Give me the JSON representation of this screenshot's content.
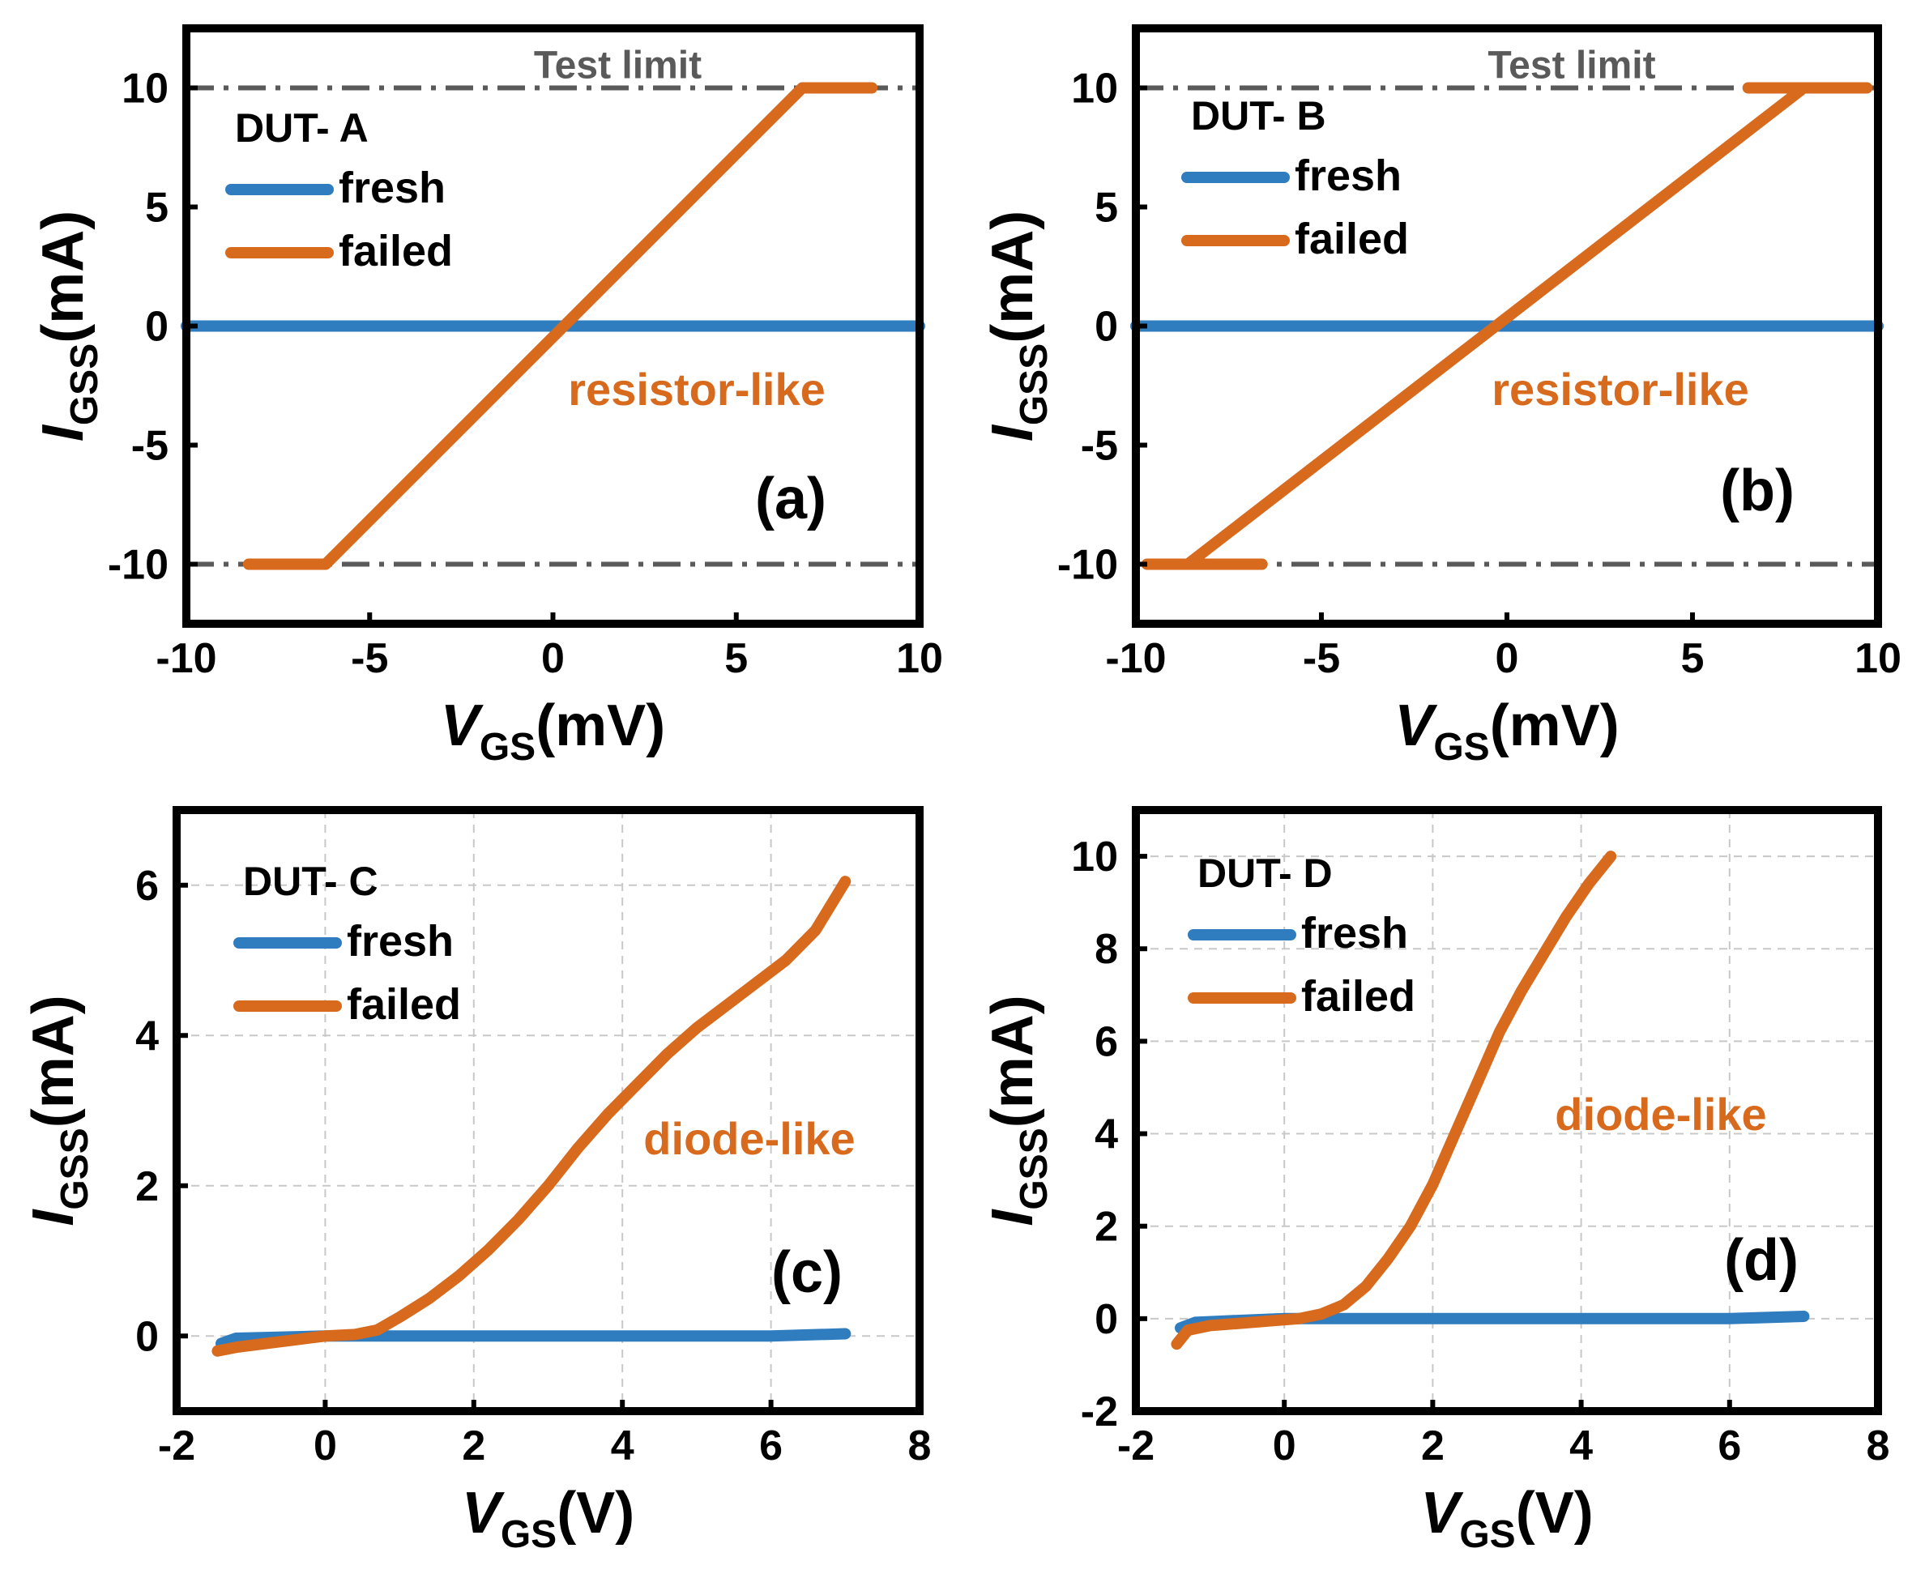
{
  "figure": {
    "colors": {
      "fresh": "#2f7dbf",
      "failed": "#d86a1e",
      "limit": "#5a5a5a",
      "frame": "#000000",
      "grid": "#c8c8c8"
    }
  },
  "chart_data": [
    {
      "type": "line",
      "panel_label": "(a)",
      "title": "DUT- A",
      "xlabel": {
        "main": "V",
        "sub": "GS",
        "unit": "(mV)"
      },
      "ylabel": {
        "main": "I",
        "sub": "GSS",
        "unit": "(mA)"
      },
      "xlim": [
        -10,
        10
      ],
      "ylim": [
        -12.5,
        12.5
      ],
      "xticks": [
        -10,
        -5,
        0,
        5,
        10
      ],
      "yticks": [
        -10,
        -5,
        0,
        5,
        10
      ],
      "grid": false,
      "legend": {
        "placement": "top-left",
        "entries": [
          "fresh",
          "failed"
        ]
      },
      "annotation": "resistor-like",
      "limit_label": "Test limit",
      "limits": [
        10,
        -10
      ],
      "series": [
        {
          "name": "fresh",
          "x": [
            -10,
            10
          ],
          "y": [
            0,
            0
          ]
        },
        {
          "name": "failed",
          "x": [
            -8.3,
            -6.2,
            6.8,
            8.7
          ],
          "y": [
            -10,
            -10,
            10,
            10
          ]
        }
      ]
    },
    {
      "type": "line",
      "panel_label": "(b)",
      "title": "DUT- B",
      "xlabel": {
        "main": "V",
        "sub": "GS",
        "unit": "(mV)"
      },
      "ylabel": {
        "main": "I",
        "sub": "GSS",
        "unit": "(mA)"
      },
      "xlim": [
        -10,
        10
      ],
      "ylim": [
        -12.5,
        12.5
      ],
      "xticks": [
        -10,
        -5,
        0,
        5,
        10
      ],
      "yticks": [
        -10,
        -5,
        0,
        5,
        10
      ],
      "grid": false,
      "legend": {
        "placement": "top-left",
        "entries": [
          "fresh",
          "failed"
        ]
      },
      "annotation": "resistor-like",
      "limit_label": "Test limit",
      "limits": [
        10,
        -10
      ],
      "series": [
        {
          "name": "fresh",
          "x": [
            -10,
            10
          ],
          "y": [
            0,
            0
          ]
        },
        {
          "name": "failed",
          "x": [
            -9.7,
            -6.6,
            null,
            -8.6,
            8.0,
            null,
            6.5,
            9.7
          ],
          "y": [
            -10,
            -10,
            null,
            -10,
            10,
            null,
            10,
            10
          ]
        }
      ]
    },
    {
      "type": "line",
      "panel_label": "(c)",
      "title": "DUT- C",
      "xlabel": {
        "main": "V",
        "sub": "GS",
        "unit": "(V)"
      },
      "ylabel": {
        "main": "I",
        "sub": "GSS",
        "unit": "(mA)"
      },
      "xlim": [
        -2,
        8
      ],
      "ylim": [
        -1,
        7
      ],
      "xticks": [
        -2,
        0,
        2,
        4,
        6,
        8
      ],
      "yticks": [
        0,
        2,
        4,
        6
      ],
      "grid": true,
      "legend": {
        "placement": "top-left",
        "entries": [
          "fresh",
          "failed"
        ]
      },
      "annotation": "diode-like",
      "series": [
        {
          "name": "fresh",
          "x": [
            -1.4,
            -1.2,
            -0.8,
            0,
            2,
            4,
            6,
            7.0
          ],
          "y": [
            -0.1,
            -0.03,
            -0.02,
            0,
            0,
            0,
            0,
            0.03
          ]
        },
        {
          "name": "failed",
          "x": [
            -1.45,
            -1.2,
            -0.8,
            -0.4,
            0,
            0.4,
            0.7,
            1.0,
            1.4,
            1.8,
            2.2,
            2.6,
            3.0,
            3.4,
            3.8,
            4.2,
            4.6,
            5.0,
            5.4,
            5.8,
            6.2,
            6.6,
            7.0
          ],
          "y": [
            -0.2,
            -0.15,
            -0.1,
            -0.05,
            0,
            0.02,
            0.08,
            0.25,
            0.5,
            0.8,
            1.15,
            1.55,
            2.0,
            2.5,
            2.95,
            3.35,
            3.75,
            4.1,
            4.4,
            4.7,
            5.0,
            5.4,
            6.05
          ]
        }
      ]
    },
    {
      "type": "line",
      "panel_label": "(d)",
      "title": "DUT- D",
      "xlabel": {
        "main": "V",
        "sub": "GS",
        "unit": "(V)"
      },
      "ylabel": {
        "main": "I",
        "sub": "GSS",
        "unit": "(mA)"
      },
      "xlim": [
        -2,
        8
      ],
      "ylim": [
        -2,
        11
      ],
      "xticks": [
        -2,
        0,
        2,
        4,
        6,
        8
      ],
      "yticks": [
        -2,
        0,
        2,
        4,
        6,
        8,
        10
      ],
      "grid": true,
      "legend": {
        "placement": "top-left",
        "entries": [
          "fresh",
          "failed"
        ]
      },
      "annotation": "diode-like",
      "series": [
        {
          "name": "fresh",
          "x": [
            -1.4,
            -1.2,
            -0.8,
            0,
            2,
            4,
            6,
            7.0
          ],
          "y": [
            -0.2,
            -0.08,
            -0.05,
            0,
            0,
            0,
            0,
            0.05
          ]
        },
        {
          "name": "failed",
          "x": [
            -1.45,
            -1.3,
            -1.0,
            -0.6,
            -0.2,
            0.2,
            0.5,
            0.8,
            1.1,
            1.4,
            1.7,
            2.0,
            2.3,
            2.6,
            2.9,
            3.2,
            3.5,
            3.8,
            4.1,
            4.4
          ],
          "y": [
            -0.55,
            -0.25,
            -0.15,
            -0.1,
            -0.05,
            0,
            0.1,
            0.3,
            0.7,
            1.3,
            2.0,
            2.9,
            4.0,
            5.1,
            6.2,
            7.1,
            7.9,
            8.7,
            9.4,
            10.0
          ]
        }
      ]
    }
  ]
}
